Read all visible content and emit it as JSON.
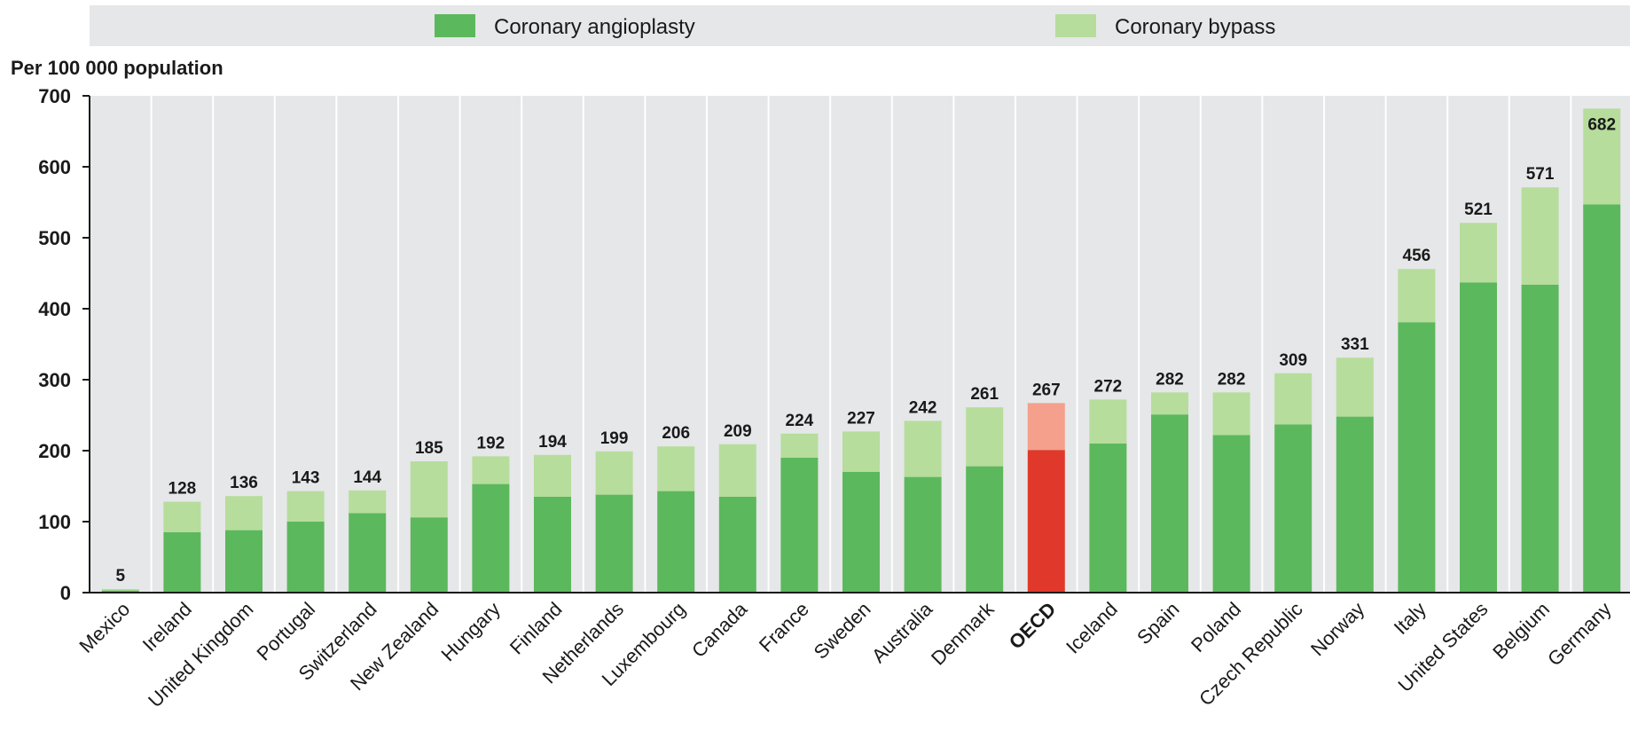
{
  "chart_data": {
    "type": "bar",
    "stacked": true,
    "unit_label": "Per 100 000 population",
    "ylim": [
      0,
      700
    ],
    "yticks": [
      0,
      100,
      200,
      300,
      400,
      500,
      600,
      700
    ],
    "grid": true,
    "legend_position": "top",
    "highlight_category": "OECD",
    "categories": [
      "Mexico",
      "Ireland",
      "United Kingdom",
      "Portugal",
      "Switzerland",
      "New Zealand",
      "Hungary",
      "Finland",
      "Netherlands",
      "Luxembourg",
      "Canada",
      "France",
      "Sweden",
      "Australia",
      "Denmark",
      "OECD",
      "Iceland",
      "Spain",
      "Poland",
      "Czech Republic",
      "Norway",
      "Italy",
      "United States",
      "Belgium",
      "Germany"
    ],
    "totals": [
      5,
      128,
      136,
      143,
      144,
      185,
      192,
      194,
      199,
      206,
      209,
      224,
      227,
      242,
      261,
      267,
      272,
      282,
      282,
      309,
      331,
      456,
      521,
      571,
      682
    ],
    "series": [
      {
        "name": "Coronary angioplasty",
        "color": "#5cb85c",
        "highlight_color": "#e0392b",
        "values": [
          3,
          85,
          88,
          100,
          112,
          106,
          153,
          135,
          138,
          143,
          135,
          190,
          170,
          163,
          178,
          201,
          210,
          251,
          222,
          237,
          248,
          381,
          437,
          434,
          547
        ]
      },
      {
        "name": "Coronary bypass",
        "color": "#b6dd9c",
        "highlight_color": "#f4a08c",
        "values": [
          2,
          43,
          48,
          43,
          32,
          79,
          39,
          59,
          61,
          63,
          74,
          34,
          57,
          79,
          83,
          66,
          62,
          31,
          60,
          72,
          83,
          75,
          84,
          137,
          135
        ]
      }
    ]
  }
}
